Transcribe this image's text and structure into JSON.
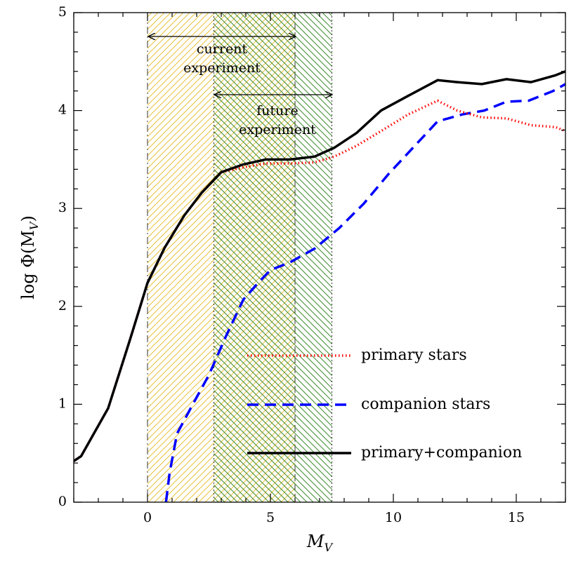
{
  "chart_data": {
    "type": "line",
    "title": "",
    "xlabel": "M",
    "xlabel_sub": "V",
    "ylabel": "log  Φ(M",
    "ylabel_sub": "V",
    "ylabel_close": ")",
    "xlim": [
      -3,
      17
    ],
    "ylim": [
      0,
      5
    ],
    "x_ticks": [
      0,
      5,
      10,
      15
    ],
    "y_ticks": [
      0,
      1,
      2,
      3,
      4,
      5
    ],
    "x_tick_labels": [
      "0",
      "5",
      "10",
      "15"
    ],
    "y_tick_labels": [
      "0",
      "1",
      "2",
      "3",
      "4",
      "5"
    ],
    "grid": false,
    "legend_position": "lower-right",
    "regions": [
      {
        "name": "current",
        "label_lines": [
          "current",
          "experiment"
        ],
        "x": [
          0,
          6
        ],
        "color": "#e8c23a",
        "hatch": "diagonal"
      },
      {
        "name": "future",
        "label_lines": [
          "future",
          "experiment"
        ],
        "x": [
          2.7,
          7.5
        ],
        "color": "#3d8a2e",
        "hatch": "diagonal-reverse"
      }
    ],
    "series": [
      {
        "name": "primary stars",
        "color": "#ff0000",
        "style": "dotted",
        "x": [
          -3,
          -2.7,
          -1.6,
          -0.7,
          0,
          0.7,
          1.5,
          2.2,
          3,
          3.9,
          4.8,
          5.8,
          6.8,
          7.6,
          8.5,
          9.5,
          10.6,
          11.8,
          12.6,
          13.6,
          14.6,
          15.6,
          16.6,
          17
        ],
        "y": [
          0.42,
          0.47,
          0.96,
          1.67,
          2.24,
          2.6,
          2.93,
          3.16,
          3.37,
          3.42,
          3.46,
          3.46,
          3.47,
          3.53,
          3.64,
          3.79,
          3.96,
          4.1,
          4.0,
          3.93,
          3.92,
          3.85,
          3.83,
          3.79
        ]
      },
      {
        "name": "companion stars",
        "color": "#0000ff",
        "style": "dashed",
        "x": [
          0.75,
          0.9,
          1.2,
          1.8,
          2.5,
          3.2,
          3.9,
          4.5,
          5,
          5.8,
          6.8,
          7.8,
          8.8,
          9.8,
          10.8,
          11.8,
          12.8,
          13.7,
          14.6,
          15.5,
          16.5,
          17
        ],
        "y": [
          0,
          0.3,
          0.7,
          0.98,
          1.3,
          1.7,
          2.07,
          2.24,
          2.37,
          2.45,
          2.59,
          2.8,
          3.05,
          3.35,
          3.62,
          3.89,
          3.96,
          4.0,
          4.09,
          4.1,
          4.2,
          4.27
        ]
      },
      {
        "name": "primary+companion",
        "color": "#000000",
        "style": "solid",
        "x": [
          -3,
          -2.7,
          -1.6,
          -0.7,
          0,
          0.7,
          1.5,
          2.2,
          3,
          3.9,
          4.8,
          5.8,
          6.8,
          7.6,
          8.5,
          9.5,
          10.6,
          11.8,
          12.6,
          13.6,
          14.6,
          15.6,
          16.6,
          17
        ],
        "y": [
          0.42,
          0.47,
          0.96,
          1.67,
          2.24,
          2.6,
          2.93,
          3.16,
          3.37,
          3.45,
          3.5,
          3.5,
          3.53,
          3.62,
          3.77,
          4.0,
          4.15,
          4.31,
          4.29,
          4.27,
          4.32,
          4.29,
          4.36,
          4.4
        ]
      }
    ]
  }
}
